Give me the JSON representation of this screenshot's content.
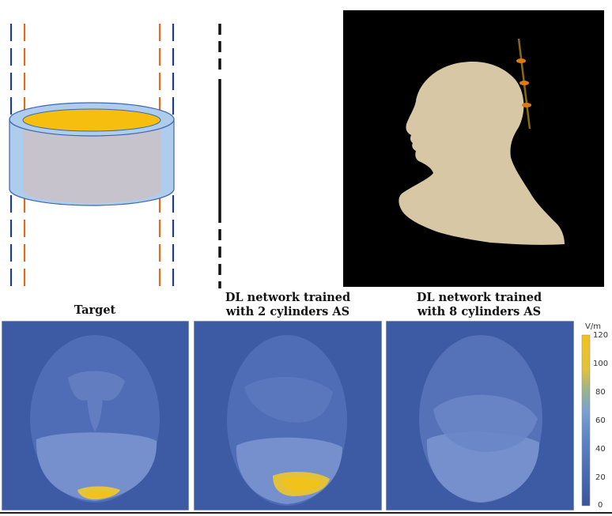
{
  "figure": {
    "panels": [
      {
        "id": "target",
        "title_lines": [
          "Target"
        ]
      },
      {
        "id": "dl2",
        "title_lines": [
          "DL network trained",
          "with 2 cylinders AS"
        ]
      },
      {
        "id": "dl8",
        "title_lines": [
          "DL network trained",
          "with 8 cylinders AS"
        ]
      }
    ],
    "colorbar": {
      "unit": "V/m",
      "ticks": [
        "120",
        "100",
        "80",
        "60",
        "40",
        "20",
        "0"
      ],
      "colors": [
        "#3b55a0",
        "#4a6cb4",
        "#5d85c8",
        "#7aa0d4",
        "#9bb48a",
        "#e2c23a",
        "#f2c21c"
      ]
    },
    "colors": {
      "outer_cylinder": "#aecdec",
      "inner_cylinder": "#c7c3cd",
      "cylinder_top": "#f6bf10",
      "blue_dash": "#1f3c88",
      "orange_dash": "#e06a1e",
      "head_tan": "#d7c7a4",
      "field_background": "#3d5aa4"
    }
  }
}
